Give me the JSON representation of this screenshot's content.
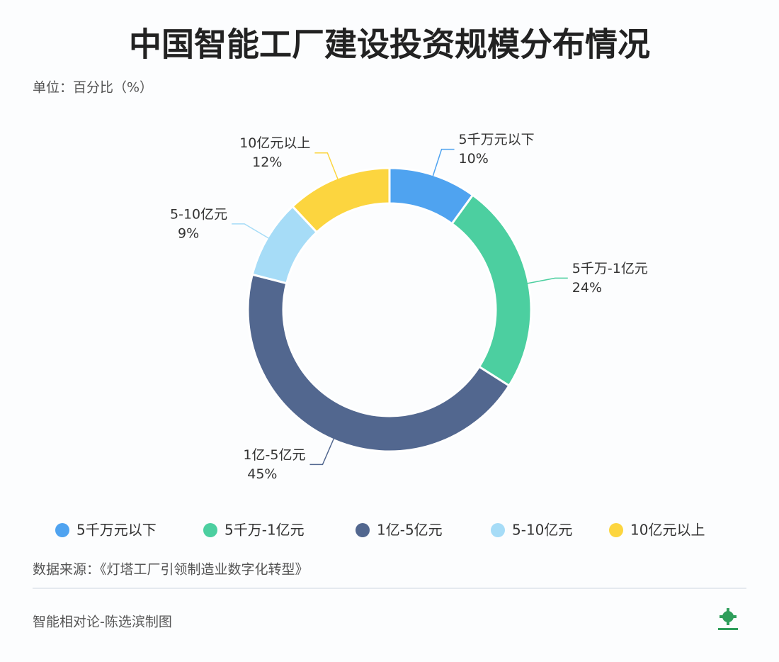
{
  "chart_data": {
    "type": "donut",
    "title": "中国智能工厂建设投资规模分布情况",
    "subtitle": "单位：百分比（%）",
    "categories": [
      "5千万元以下",
      "5千万-1亿元",
      "1亿-5亿元",
      "5-10亿元",
      "10亿元以上"
    ],
    "values": [
      10,
      24,
      45,
      9,
      12
    ],
    "value_labels": [
      "10%",
      "24%",
      "45%",
      "9%",
      "12%"
    ],
    "colors": [
      "#4fa3f0",
      "#4ccfa0",
      "#52678f",
      "#a6dcf7",
      "#fcd53f"
    ],
    "source": "数据来源：《灯塔工厂引领制造业数字化转型》",
    "footer": "智能相对论-陈选滨制图"
  }
}
